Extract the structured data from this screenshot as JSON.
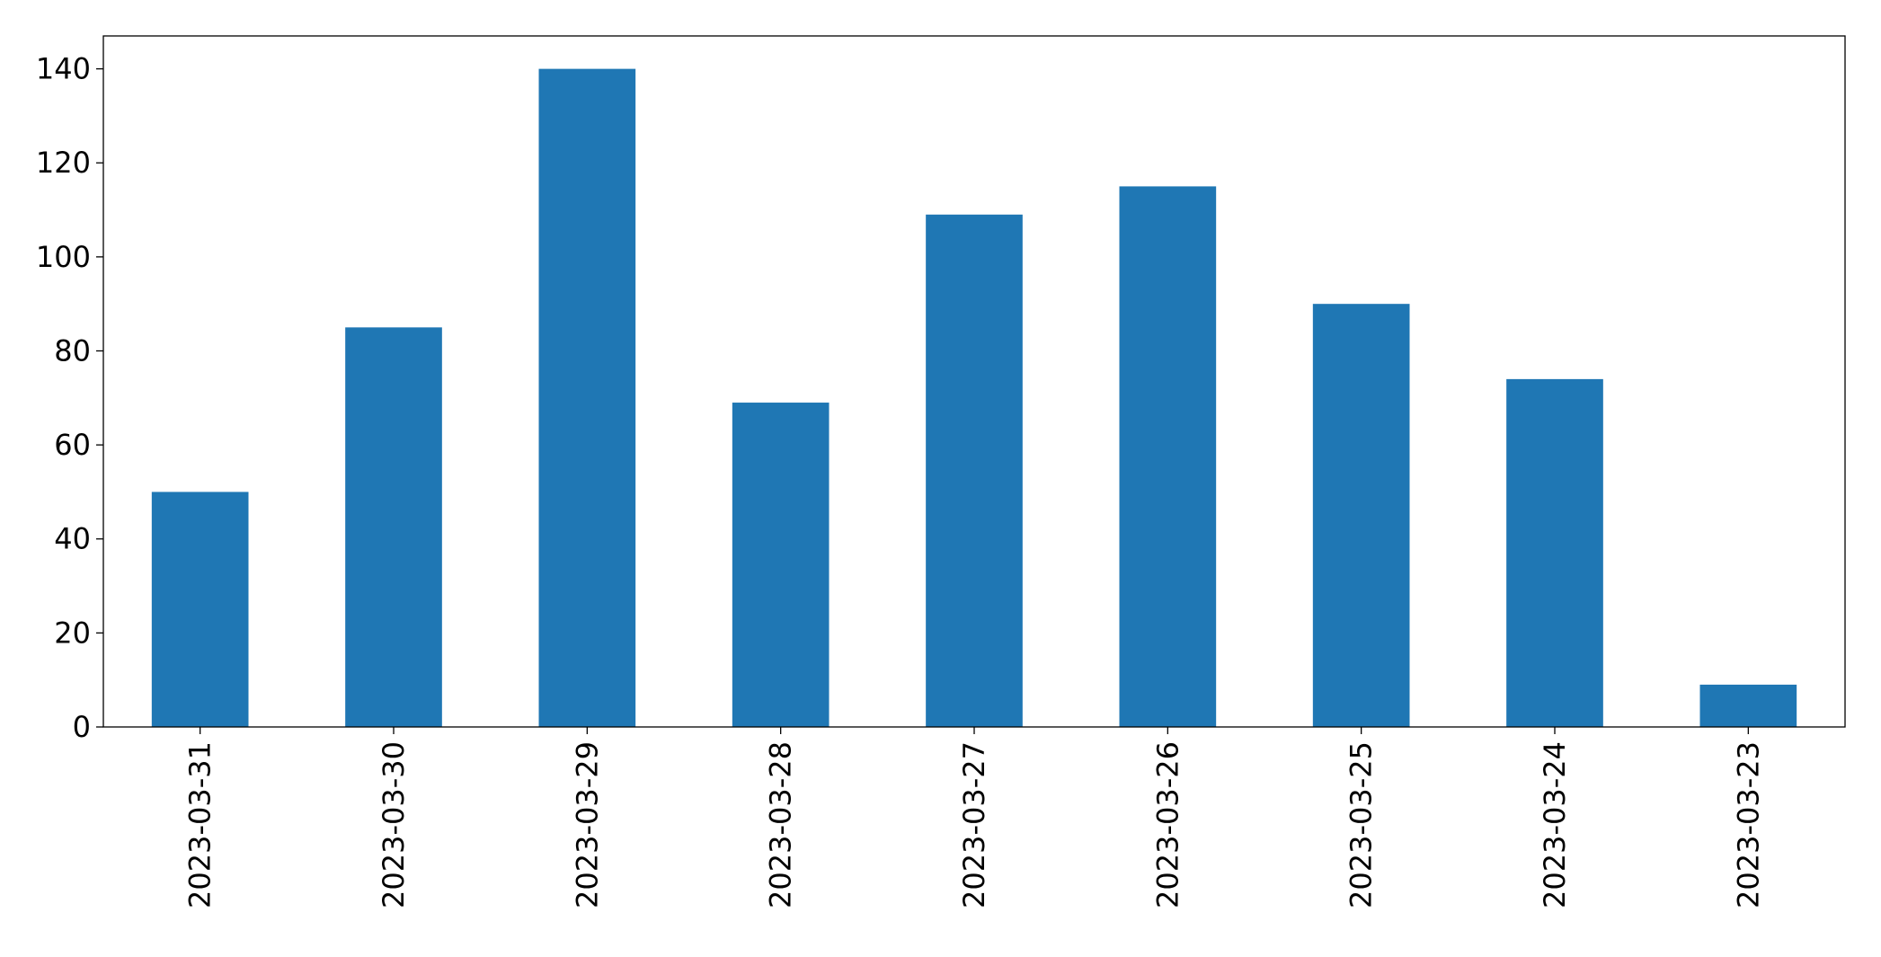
{
  "chart_data": {
    "type": "bar",
    "categories": [
      "2023-03-31",
      "2023-03-30",
      "2023-03-29",
      "2023-03-28",
      "2023-03-27",
      "2023-03-26",
      "2023-03-25",
      "2023-03-24",
      "2023-03-23"
    ],
    "values": [
      50,
      85,
      140,
      69,
      109,
      115,
      90,
      74,
      9
    ],
    "color": "#1f77b4",
    "ylim": [
      0,
      147
    ],
    "yticks": [
      0,
      20,
      40,
      60,
      80,
      100,
      120,
      140
    ],
    "grid": false
  }
}
